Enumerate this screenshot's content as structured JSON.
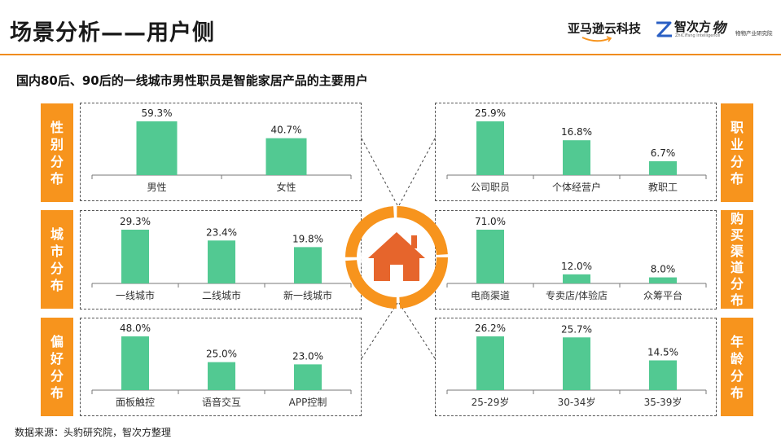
{
  "header": {
    "title": "场景分析——用户侧",
    "logo_amazon": "亚马逊云科技",
    "logo_zhicifang": "智次方",
    "logo_zhicifang_sub": "ZhiCiFang Intelligence",
    "logo_wulian": "物",
    "logo_wulian_sub": "物物产业研究院"
  },
  "subtitle": "国内80后、90后的一线城市男性职员是智能家居产品的主要用户",
  "source": "数据来源：头豹研究院，智次方整理",
  "colors": {
    "bar": "#52c992",
    "accent": "#f7941d",
    "line": "#f08c1e",
    "home": "#e6652c"
  },
  "panels": [
    {
      "tag": "性别分布",
      "chart_index": 0
    },
    {
      "tag": "城市分布",
      "chart_index": 1
    },
    {
      "tag": "偏好分布",
      "chart_index": 2
    },
    {
      "tag": "职业分布",
      "chart_index": 3
    },
    {
      "tag": "购买渠道分布",
      "chart_index": 4
    },
    {
      "tag": "年龄分布",
      "chart_index": 5
    }
  ],
  "chart_data": [
    {
      "type": "bar",
      "title": "性别分布",
      "categories": [
        "男性",
        "女性"
      ],
      "values": [
        59.3,
        40.7
      ],
      "value_labels": [
        "59.3%",
        "40.7%"
      ],
      "ylim": [
        0,
        59.3
      ]
    },
    {
      "type": "bar",
      "title": "城市分布",
      "categories": [
        "一线城市",
        "二线城市",
        "新一线城市"
      ],
      "values": [
        29.3,
        23.4,
        19.8
      ],
      "value_labels": [
        "29.3%",
        "23.4%",
        "19.8%"
      ],
      "ylim": [
        0,
        29.3
      ]
    },
    {
      "type": "bar",
      "title": "偏好分布",
      "categories": [
        "面板触控",
        "语音交互",
        "APP控制"
      ],
      "values": [
        48.0,
        25.0,
        23.0
      ],
      "value_labels": [
        "48.0%",
        "25.0%",
        "23.0%"
      ],
      "ylim": [
        0,
        48.0
      ]
    },
    {
      "type": "bar",
      "title": "职业分布",
      "categories": [
        "公司职员",
        "个体经营户",
        "教职工"
      ],
      "values": [
        25.9,
        16.8,
        6.7
      ],
      "value_labels": [
        "25.9%",
        "16.8%",
        "6.7%"
      ],
      "ylim": [
        0,
        25.9
      ]
    },
    {
      "type": "bar",
      "title": "购买渠道分布",
      "categories": [
        "电商渠道",
        "专卖店/体验店",
        "众筹平台"
      ],
      "values": [
        71.0,
        12.0,
        8.0
      ],
      "value_labels": [
        "71.0%",
        "12.0%",
        "8.0%"
      ],
      "ylim": [
        0,
        71.0
      ]
    },
    {
      "type": "bar",
      "title": "年龄分布",
      "categories": [
        "25-29岁",
        "30-34岁",
        "35-39岁"
      ],
      "values": [
        26.2,
        25.7,
        14.5
      ],
      "value_labels": [
        "26.2%",
        "25.7%",
        "14.5%"
      ],
      "ylim": [
        0,
        26.2
      ]
    }
  ]
}
